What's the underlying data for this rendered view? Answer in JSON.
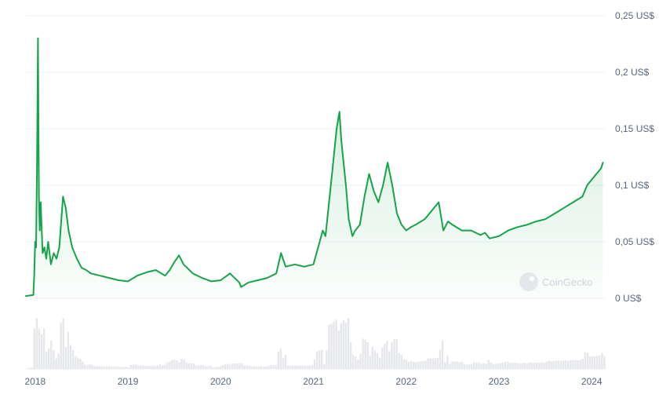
{
  "watermark": {
    "text": "CoinGecko"
  },
  "colors": {
    "line": "#16a34a",
    "fill": "#16a34a",
    "volume": "#e5e7eb",
    "grid": "#eef0f3",
    "text": "#58667e"
  },
  "chart_data": {
    "type": "area",
    "title": "",
    "xlabel": "",
    "ylabel": "",
    "y_unit": "US$",
    "ylim": [
      0,
      0.25
    ],
    "y_ticks": [
      {
        "value": 0.25,
        "label": "0,25 US$"
      },
      {
        "value": 0.2,
        "label": "0,2 US$"
      },
      {
        "value": 0.15,
        "label": "0,15 US$"
      },
      {
        "value": 0.1,
        "label": "0,1 US$"
      },
      {
        "value": 0.05,
        "label": "0,05 US$"
      },
      {
        "value": 0,
        "label": "0 US$"
      }
    ],
    "xlim": [
      2017.9,
      2024.15
    ],
    "x_ticks": [
      {
        "value": 2018,
        "label": "2018"
      },
      {
        "value": 2019,
        "label": "2019"
      },
      {
        "value": 2020,
        "label": "2020"
      },
      {
        "value": 2021,
        "label": "2021"
      },
      {
        "value": 2022,
        "label": "2022"
      },
      {
        "value": 2023,
        "label": "2023"
      },
      {
        "value": 2024,
        "label": "2024"
      }
    ],
    "grid": true,
    "legend": "none",
    "series": [
      {
        "x": [
          2017.9,
          2017.98,
          2017.99,
          2018.0,
          2018.01,
          2018.02,
          2018.03,
          2018.04,
          2018.05,
          2018.06,
          2018.08,
          2018.1,
          2018.12,
          2018.14,
          2018.17,
          2018.2,
          2018.23,
          2018.26,
          2018.3,
          2018.33,
          2018.36,
          2018.4,
          2018.45,
          2018.5,
          2018.55,
          2018.6,
          2018.7,
          2018.8,
          2018.9,
          2019.0,
          2019.1,
          2019.2,
          2019.3,
          2019.4,
          2019.45,
          2019.5,
          2019.55,
          2019.6,
          2019.7,
          2019.8,
          2019.9,
          2020.0,
          2020.1,
          2020.2,
          2020.22,
          2020.3,
          2020.4,
          2020.5,
          2020.6,
          2020.65,
          2020.7,
          2020.8,
          2020.9,
          2021.0,
          2021.05,
          2021.1,
          2021.13,
          2021.2,
          2021.25,
          2021.28,
          2021.3,
          2021.35,
          2021.38,
          2021.42,
          2021.45,
          2021.5,
          2021.55,
          2021.6,
          2021.65,
          2021.7,
          2021.75,
          2021.8,
          2021.85,
          2021.9,
          2021.95,
          2022.0,
          2022.05,
          2022.1,
          2022.2,
          2022.3,
          2022.35,
          2022.4,
          2022.45,
          2022.5,
          2022.6,
          2022.7,
          2022.8,
          2022.85,
          2022.9,
          2023.0,
          2023.1,
          2023.2,
          2023.3,
          2023.4,
          2023.5,
          2023.6,
          2023.7,
          2023.8,
          2023.9,
          2023.95,
          2024.0,
          2024.05,
          2024.1,
          2024.12
        ],
        "y": [
          0.002,
          0.003,
          0.02,
          0.05,
          0.045,
          0.12,
          0.23,
          0.09,
          0.06,
          0.085,
          0.04,
          0.045,
          0.035,
          0.05,
          0.03,
          0.04,
          0.035,
          0.045,
          0.09,
          0.08,
          0.06,
          0.045,
          0.035,
          0.027,
          0.025,
          0.022,
          0.02,
          0.018,
          0.016,
          0.015,
          0.02,
          0.023,
          0.025,
          0.02,
          0.025,
          0.032,
          0.038,
          0.03,
          0.022,
          0.018,
          0.015,
          0.016,
          0.022,
          0.014,
          0.01,
          0.014,
          0.016,
          0.018,
          0.022,
          0.04,
          0.028,
          0.03,
          0.028,
          0.03,
          0.045,
          0.06,
          0.055,
          0.11,
          0.15,
          0.165,
          0.14,
          0.1,
          0.07,
          0.055,
          0.06,
          0.065,
          0.09,
          0.11,
          0.095,
          0.085,
          0.1,
          0.12,
          0.1,
          0.075,
          0.065,
          0.06,
          0.063,
          0.065,
          0.07,
          0.08,
          0.085,
          0.06,
          0.068,
          0.065,
          0.06,
          0.06,
          0.056,
          0.058,
          0.053,
          0.055,
          0.06,
          0.063,
          0.065,
          0.068,
          0.07,
          0.075,
          0.08,
          0.085,
          0.09,
          0.1,
          0.105,
          0.11,
          0.115,
          0.12
        ]
      }
    ]
  }
}
